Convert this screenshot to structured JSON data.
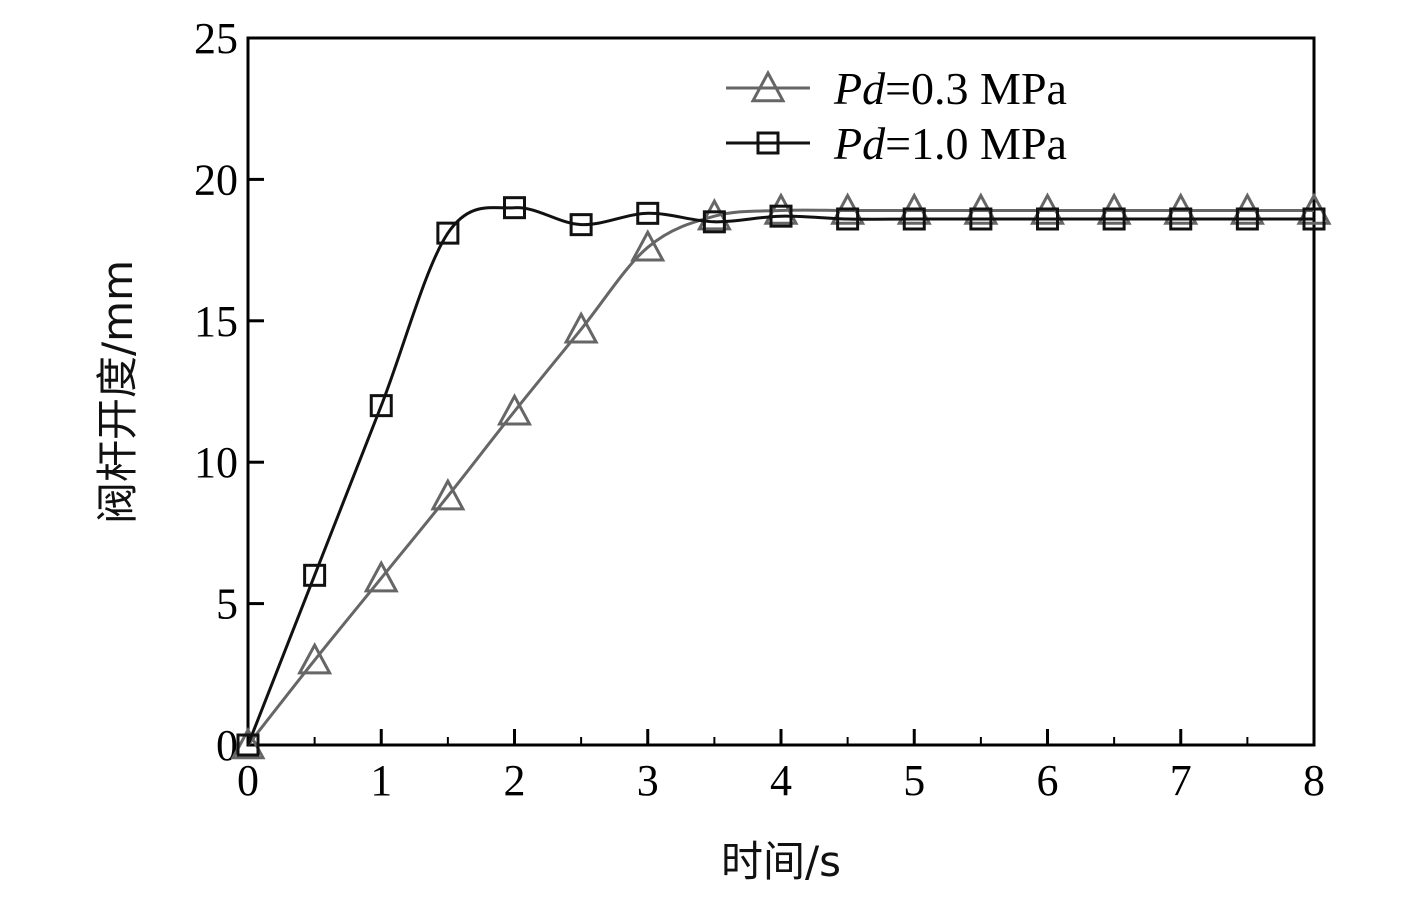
{
  "chart_data": {
    "type": "line",
    "title": "",
    "xlabel": "时间/s",
    "ylabel": "阀杆开度/mm",
    "xlim": [
      0,
      8
    ],
    "ylim": [
      0,
      25
    ],
    "x_ticks": [
      "0",
      "1",
      "2",
      "3",
      "4",
      "5",
      "6",
      "7",
      "8"
    ],
    "y_ticks": [
      "0",
      "5",
      "10",
      "15",
      "20",
      "25"
    ],
    "grid": false,
    "legend_position": "top-right",
    "series": [
      {
        "name": "Pd=0.3 MPa",
        "label_italic": "Pd",
        "label_rest": "=0.3 MPa",
        "marker": "triangle",
        "color": "#666666",
        "x": [
          0,
          0.5,
          1,
          1.5,
          2,
          2.5,
          3,
          3.5,
          4,
          4.5,
          5,
          5.5,
          6,
          6.5,
          7,
          7.5,
          8
        ],
        "values": [
          0,
          3.0,
          5.9,
          8.8,
          11.8,
          14.7,
          17.6,
          18.7,
          18.9,
          18.9,
          18.9,
          18.9,
          18.9,
          18.9,
          18.9,
          18.9,
          18.9
        ]
      },
      {
        "name": "Pd=1.0 MPa",
        "label_italic": "Pd",
        "label_rest": "=1.0 MPa",
        "marker": "square",
        "color": "#111111",
        "x": [
          0,
          0.5,
          1,
          1.5,
          2,
          2.5,
          3,
          3.5,
          4,
          4.5,
          5,
          5.5,
          6,
          6.5,
          7,
          7.5,
          8
        ],
        "values": [
          0,
          6.0,
          12.0,
          18.1,
          19.0,
          18.4,
          18.8,
          18.5,
          18.7,
          18.6,
          18.6,
          18.6,
          18.6,
          18.6,
          18.6,
          18.6,
          18.6
        ]
      }
    ]
  }
}
